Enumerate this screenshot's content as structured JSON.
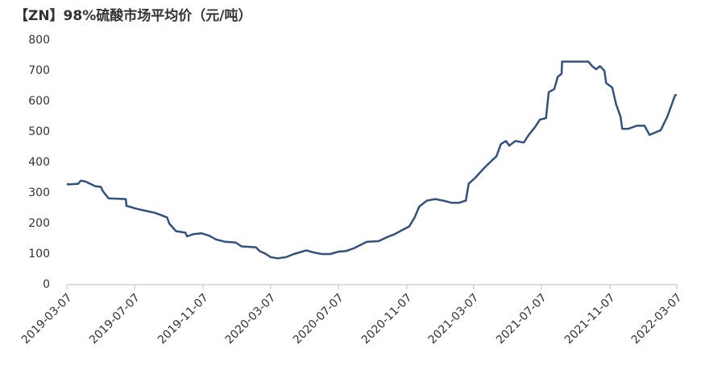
{
  "chart_data": {
    "type": "line",
    "title": "【ZN】98%硫酸市场平均价（元/吨）",
    "x": [
      "2019-03-07",
      "2019-03-10",
      "2019-03-27",
      "2019-04-01",
      "2019-04-09",
      "2019-04-18",
      "2019-04-27",
      "2019-05-07",
      "2019-05-11",
      "2019-05-21",
      "2019-06-21",
      "2019-06-22",
      "2019-07-11",
      "2019-07-25",
      "2019-08-12",
      "2019-08-23",
      "2019-09-03",
      "2019-09-07",
      "2019-09-19",
      "2019-10-06",
      "2019-10-09",
      "2019-10-20",
      "2019-11-04",
      "2019-11-18",
      "2019-11-30",
      "2019-12-17",
      "2020-01-04",
      "2020-01-15",
      "2020-02-10",
      "2020-02-16",
      "2020-02-28",
      "2020-03-07",
      "2020-03-20",
      "2020-04-04",
      "2020-04-18",
      "2020-05-10",
      "2020-05-24",
      "2020-06-08",
      "2020-06-22",
      "2020-07-07",
      "2020-07-21",
      "2020-08-05",
      "2020-08-27",
      "2020-09-17",
      "2020-10-02",
      "2020-10-16",
      "2020-10-31",
      "2020-11-11",
      "2020-11-21",
      "2020-11-29",
      "2020-12-13",
      "2020-12-28",
      "2021-01-11",
      "2021-01-26",
      "2021-02-09",
      "2021-02-21",
      "2021-02-26",
      "2021-03-10",
      "2021-03-25",
      "2021-04-08",
      "2021-04-17",
      "2021-04-25",
      "2021-05-04",
      "2021-05-10",
      "2021-05-21",
      "2021-06-05",
      "2021-06-14",
      "2021-06-25",
      "2021-07-04",
      "2021-07-15",
      "2021-07-20",
      "2021-07-30",
      "2021-08-05",
      "2021-08-12",
      "2021-08-13",
      "2021-09-29",
      "2021-10-06",
      "2021-10-13",
      "2021-10-20",
      "2021-10-28",
      "2021-10-31",
      "2021-11-11",
      "2021-11-18",
      "2021-11-26",
      "2021-11-29",
      "2021-12-10",
      "2021-12-25",
      "2022-01-08",
      "2022-01-17",
      "2022-01-30",
      "2022-02-06",
      "2022-02-18",
      "2022-02-26",
      "2022-03-04",
      "2022-03-07"
    ],
    "series": [
      {
        "name": "98%硫酸市场平均价",
        "color": "#33507e",
        "values": [
          330,
          328,
          330,
          340,
          338,
          330,
          322,
          320,
          305,
          282,
          280,
          258,
          248,
          242,
          235,
          228,
          220,
          200,
          175,
          170,
          158,
          165,
          168,
          160,
          148,
          140,
          138,
          125,
          122,
          110,
          100,
          90,
          86,
          90,
          100,
          112,
          105,
          100,
          100,
          108,
          110,
          120,
          140,
          142,
          155,
          165,
          180,
          190,
          220,
          255,
          275,
          280,
          275,
          268,
          268,
          275,
          330,
          350,
          380,
          405,
          420,
          460,
          470,
          455,
          470,
          465,
          490,
          515,
          540,
          545,
          630,
          640,
          680,
          690,
          730,
          730,
          715,
          705,
          715,
          700,
          660,
          645,
          590,
          550,
          510,
          510,
          520,
          520,
          490,
          500,
          505,
          550,
          590,
          620,
          620
        ]
      }
    ],
    "xlim": [
      "2019-03-07",
      "2022-03-07"
    ],
    "xticks": [
      "2019-03-07",
      "2019-07-07",
      "2019-11-07",
      "2020-03-07",
      "2020-07-07",
      "2020-11-07",
      "2021-03-07",
      "2021-07-07",
      "2021-11-07",
      "2022-03-07"
    ],
    "ylim": [
      0,
      800
    ],
    "yticks": [
      0,
      100,
      200,
      300,
      400,
      500,
      600,
      700,
      800
    ],
    "grid": false
  }
}
